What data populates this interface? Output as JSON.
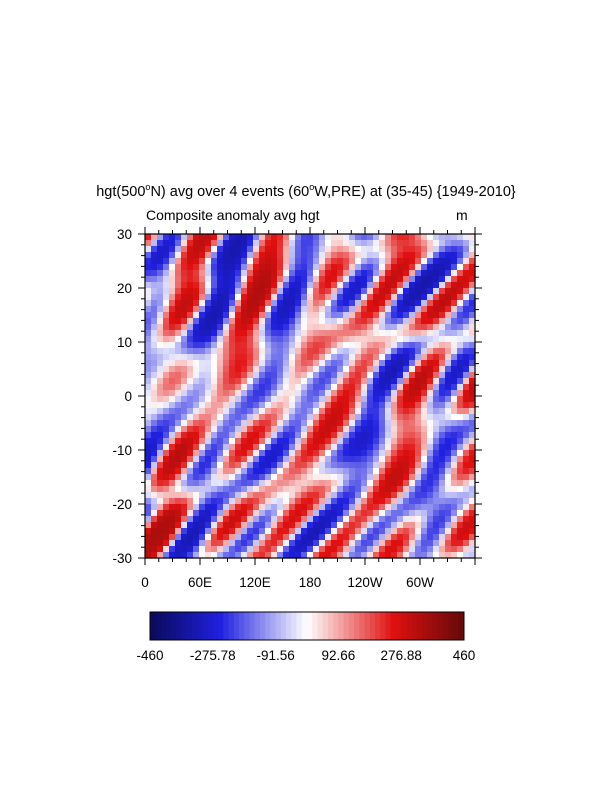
{
  "title_parts": {
    "a": "hgt(500",
    "a_sup": "o",
    "b": "N) avg over 4 events (60",
    "b_sup": "o",
    "c": "W,PRE) at (35-45) {1949-2010}"
  },
  "left_string": "Composite anomaly avg hgt",
  "right_string": "m",
  "colors": {
    "negative_max": "#0a0a5a",
    "negative_mid": "#2020e0",
    "neutral": "#ffffff",
    "positive_mid": "#e01010",
    "positive_max": "#640a0a"
  },
  "chart_data": {
    "type": "heatmap",
    "title": "hgt(500°N) avg over 4 events (60°W,PRE) at (35-45) {1949-2010}",
    "subtitle": "Composite anomaly avg hgt",
    "units": "m",
    "x_ticks": [
      "0",
      "60E",
      "120E",
      "180",
      "120W",
      "60W"
    ],
    "x_tick_values": [
      0,
      60,
      120,
      180,
      240,
      300
    ],
    "xlim": [
      0,
      360
    ],
    "y_ticks": [
      "30",
      "20",
      "10",
      "0",
      "-10",
      "-20",
      "-30"
    ],
    "y_tick_values": [
      30,
      20,
      10,
      0,
      -10,
      -20,
      -30
    ],
    "ylim": [
      -30,
      30
    ],
    "colorbar_labels": [
      "-460",
      "-275.78",
      "-91.56",
      "92.66",
      "276.88",
      "460"
    ],
    "colorbar_range": [
      -460,
      460
    ],
    "colormap": "blue-white-red"
  }
}
